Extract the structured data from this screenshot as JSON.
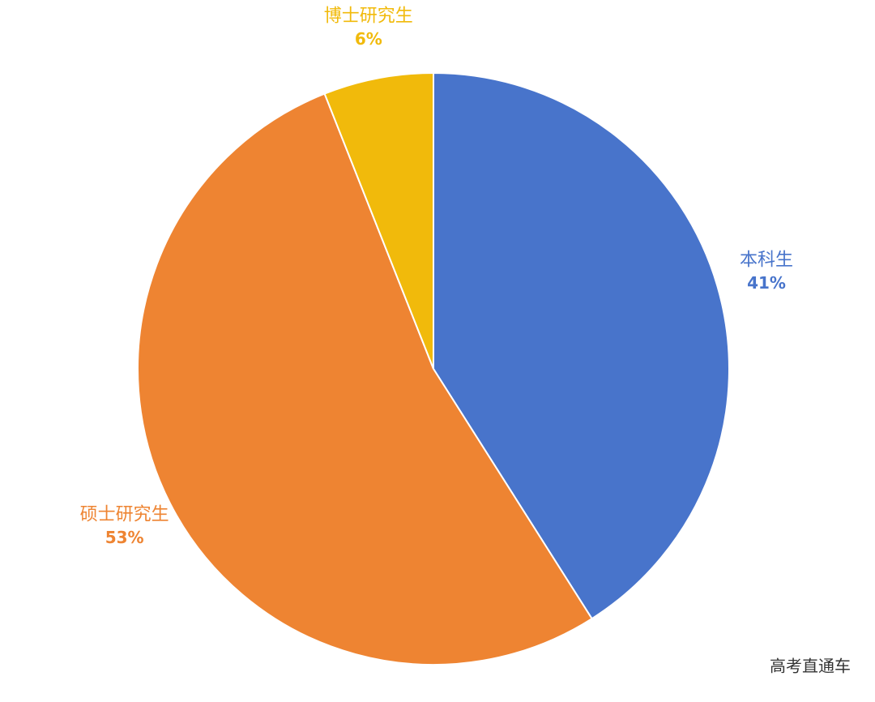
{
  "chart_data": {
    "type": "pie",
    "categories": [
      "本科生",
      "硕士研究生",
      "博士研究生"
    ],
    "values": [
      41,
      53,
      6
    ],
    "value_labels": [
      "41%",
      "53%",
      "6%"
    ],
    "colors": [
      "#4874cb",
      "#ee8432",
      "#f1ba0b"
    ]
  },
  "watermark": "高考直通车"
}
